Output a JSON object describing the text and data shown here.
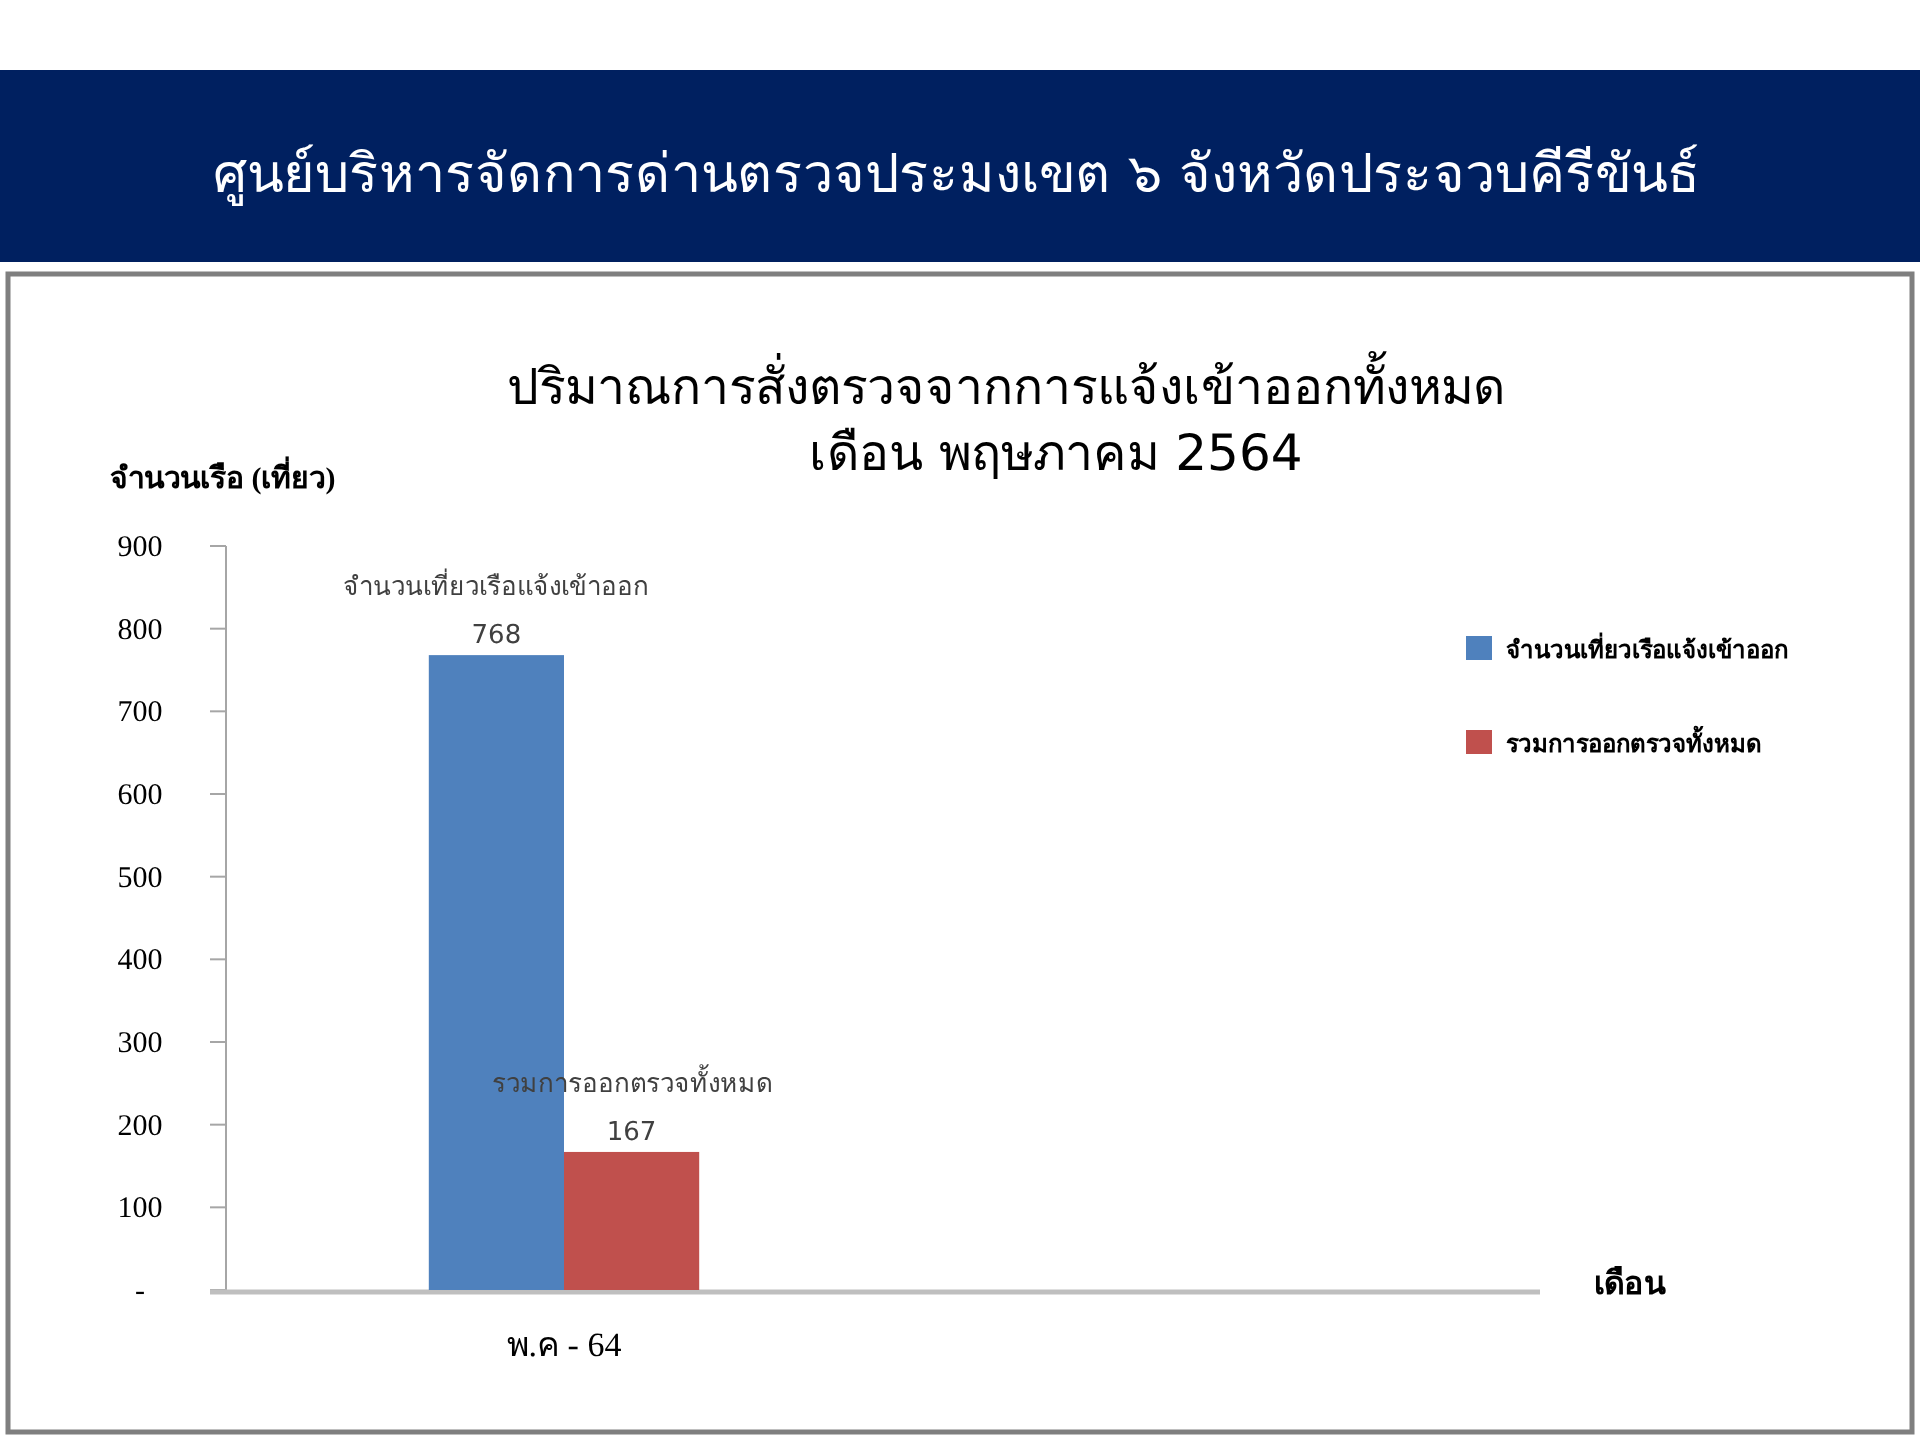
{
  "chart_data": {
    "type": "bar",
    "title": "ปริมาณการสั่งตรวจจากการแจ้งเข้าออกทั้งหมด",
    "subtitle": "เดือน พฤษภาคม 2564",
    "annotations": [
      "ศูนย์บริหารจัดการด่านตรวจประมงเขต ๖ จังหวัดประจวบคีรีขันธ์"
    ],
    "ylabel": "จำนวนเรือ (เที่ยว)",
    "xlabel": "เดือน",
    "categories": [
      "พ.ค - 64"
    ],
    "series": [
      {
        "name": "จำนวนเที่ยวเรือแจ้งเข้าออก",
        "color": "#4f81bd",
        "values": [
          768
        ]
      },
      {
        "name": "รวมการออกตรวจทั้งหมด",
        "color": "#c0504d",
        "values": [
          167
        ]
      }
    ],
    "ylim": [
      0,
      900
    ],
    "yticks": [
      {
        "value": 0,
        "label": "-"
      },
      100,
      200,
      300,
      400,
      500,
      600,
      700,
      800,
      900
    ],
    "data_labels": true,
    "legend": "right"
  }
}
